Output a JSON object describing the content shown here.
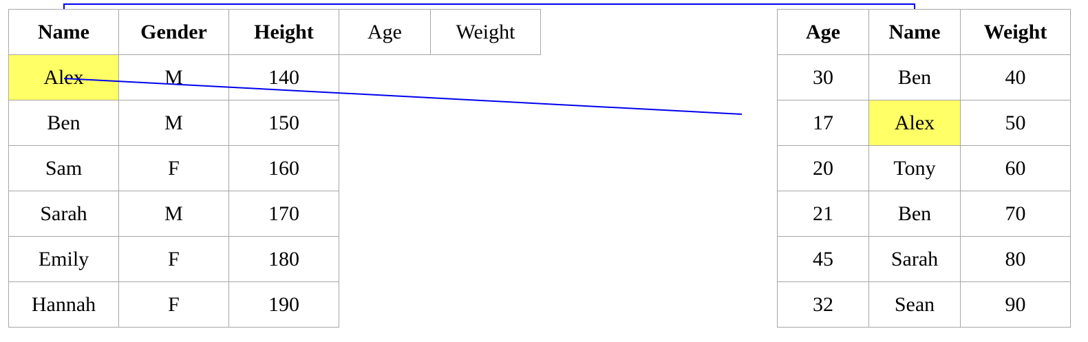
{
  "left_table": {
    "headers": [
      "Name",
      "Gender",
      "Height"
    ],
    "extra_headers": [
      "Age",
      "Weight"
    ],
    "rows": [
      [
        "Alex",
        "M",
        "140"
      ],
      [
        "Ben",
        "M",
        "150"
      ],
      [
        "Sam",
        "F",
        "160"
      ],
      [
        "Sarah",
        "M",
        "170"
      ],
      [
        "Emily",
        "F",
        "180"
      ],
      [
        "Hannah",
        "F",
        "190"
      ]
    ]
  },
  "right_table": {
    "headers": [
      "Age",
      "Name",
      "Weight"
    ],
    "rows": [
      [
        "30",
        "Ben",
        "40"
      ],
      [
        "17",
        "Alex",
        "50"
      ],
      [
        "20",
        "Tony",
        "60"
      ],
      [
        "21",
        "Ben",
        "70"
      ],
      [
        "45",
        "Sarah",
        "80"
      ],
      [
        "32",
        "Sean",
        "90"
      ]
    ]
  },
  "colors": {
    "highlight": "#ffff66",
    "connector": "#0000ee",
    "border": "#a6a6a6"
  }
}
